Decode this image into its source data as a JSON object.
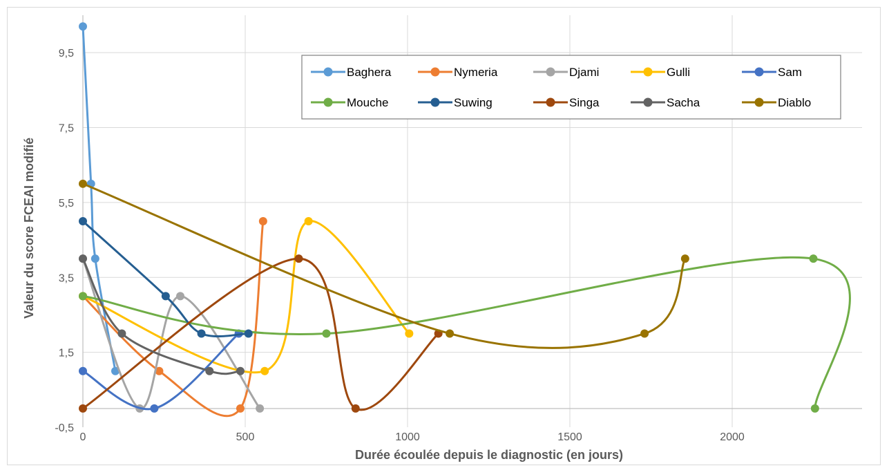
{
  "chart_data": {
    "type": "line",
    "xlabel": "Durée écoulée depuis le diagnostic (en jours)",
    "ylabel": "Valeur du score FCEAI modifié",
    "xlim": [
      0,
      2400
    ],
    "ylim": [
      -0.5,
      10.5
    ],
    "x_ticks": [
      0,
      500,
      1000,
      1500,
      2000
    ],
    "x_tick_labels": [
      "0",
      "500",
      "1000",
      "1500",
      "2000"
    ],
    "y_ticks": [
      -0.5,
      1.5,
      3.5,
      5.5,
      7.5,
      9.5
    ],
    "y_tick_labels": [
      "-0,5",
      "1,5",
      "3,5",
      "5,5",
      "7,5",
      "9,5"
    ],
    "grid": true,
    "legend_position": "top-right",
    "series": [
      {
        "name": "Baghera",
        "color": "#5b9bd5",
        "points": [
          [
            0,
            10.2
          ],
          [
            25,
            6
          ],
          [
            38,
            4
          ],
          [
            100,
            1
          ]
        ]
      },
      {
        "name": "Nymeria",
        "color": "#ed7d31",
        "points": [
          [
            0,
            3
          ],
          [
            235,
            1
          ],
          [
            485,
            0
          ],
          [
            555,
            5
          ]
        ]
      },
      {
        "name": "Djami",
        "color": "#a5a5a5",
        "points": [
          [
            0,
            4
          ],
          [
            175,
            0
          ],
          [
            300,
            3
          ],
          [
            545,
            0
          ]
        ]
      },
      {
        "name": "Gulli",
        "color": "#ffc000",
        "points": [
          [
            0,
            3
          ],
          [
            560,
            1
          ],
          [
            695,
            5
          ],
          [
            1005,
            2
          ]
        ]
      },
      {
        "name": "Sam",
        "color": "#4472c4",
        "points": [
          [
            0,
            1
          ],
          [
            220,
            0
          ],
          [
            480,
            2
          ]
        ]
      },
      {
        "name": "Mouche",
        "color": "#70ad47",
        "points": [
          [
            0,
            3
          ],
          [
            750,
            2
          ],
          [
            2250,
            4
          ],
          [
            2255,
            0
          ]
        ]
      },
      {
        "name": "Suwing",
        "color": "#255e91",
        "points": [
          [
            0,
            5
          ],
          [
            255,
            3
          ],
          [
            365,
            2
          ],
          [
            510,
            2
          ]
        ]
      },
      {
        "name": "Singa",
        "color": "#9e480e",
        "points": [
          [
            0,
            0
          ],
          [
            665,
            4
          ],
          [
            840,
            0
          ],
          [
            1095,
            2
          ]
        ]
      },
      {
        "name": "Sacha",
        "color": "#636363",
        "points": [
          [
            0,
            4
          ],
          [
            120,
            2
          ],
          [
            390,
            1
          ],
          [
            485,
            1
          ]
        ]
      },
      {
        "name": "Diablo",
        "color": "#997300",
        "points": [
          [
            0,
            6
          ],
          [
            1130,
            2
          ],
          [
            1730,
            2
          ],
          [
            1855,
            4
          ]
        ]
      }
    ]
  }
}
